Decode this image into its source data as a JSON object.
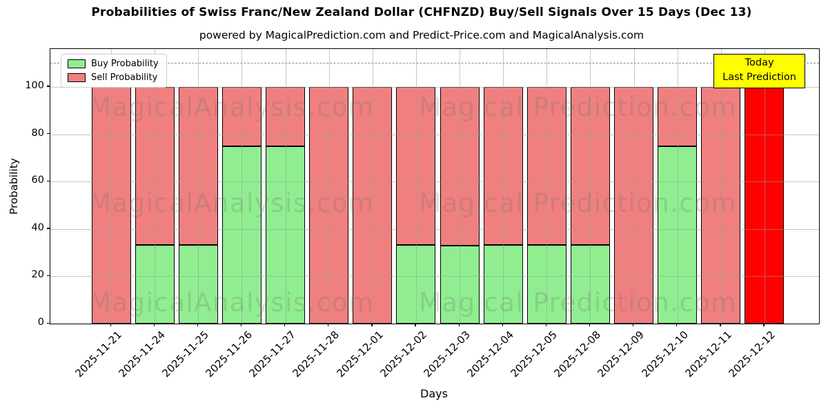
{
  "header": {
    "title": "Probabilities of Swiss Franc/New Zealand Dollar (CHFNZD) Buy/Sell Signals Over 15 Days (Dec 13)",
    "subtitle": "powered by MagicalPrediction.com and Predict-Price.com and MagicalAnalysis.com"
  },
  "chart_data": {
    "type": "bar",
    "stacked": true,
    "title": "Probabilities of Swiss Franc/New Zealand Dollar (CHFNZD) Buy/Sell Signals Over 15 Days (Dec 13)",
    "xlabel": "Days",
    "ylabel": "Probability",
    "ylim": [
      0,
      116
    ],
    "yticks": [
      0,
      20,
      40,
      60,
      80,
      100
    ],
    "grid": true,
    "dashed_line_y": 110,
    "legend_position": "upper left",
    "categories": [
      "2025-11-21",
      "2025-11-24",
      "2025-11-25",
      "2025-11-26",
      "2025-11-27",
      "2025-11-28",
      "2025-12-01",
      "2025-12-02",
      "2025-12-03",
      "2025-12-04",
      "2025-12-05",
      "2025-12-08",
      "2025-12-09",
      "2025-12-10",
      "2025-12-11",
      "2025-12-12"
    ],
    "series": [
      {
        "name": "Buy Probability",
        "color": "#90ee90",
        "values": [
          0,
          33.33,
          33.33,
          75,
          75,
          0,
          0,
          33.33,
          33,
          33.33,
          33.33,
          33.33,
          0,
          75,
          0,
          0
        ]
      },
      {
        "name": "Sell Probability",
        "color": "#f08080",
        "values": [
          100,
          66.67,
          66.67,
          25,
          25,
          100,
          100,
          66.67,
          67,
          66.67,
          66.67,
          66.67,
          100,
          25,
          100,
          100
        ]
      }
    ],
    "highlight": {
      "index": 15,
      "color": "#ff0000",
      "label": "Today / Last Prediction"
    }
  },
  "legend": {
    "items": [
      {
        "label": "Buy Probability",
        "color": "#90ee90"
      },
      {
        "label": "Sell Probability",
        "color": "#f08080"
      }
    ]
  },
  "annotation_box": {
    "line1": "Today",
    "line2": "Last Prediction",
    "bg": "#ffff00"
  },
  "watermarks": {
    "left": "MagicalAnalysis.com",
    "right": "Magical Prediction.com"
  },
  "axis": {
    "x_title": "Days",
    "y_title": "Probability"
  },
  "colors": {
    "buy": "#90ee90",
    "sell": "#f08080",
    "today_bar": "#ff0000",
    "annotation_bg": "#ffff00",
    "grid": "#9aa3a8",
    "dashed": "#8a8a8a"
  }
}
